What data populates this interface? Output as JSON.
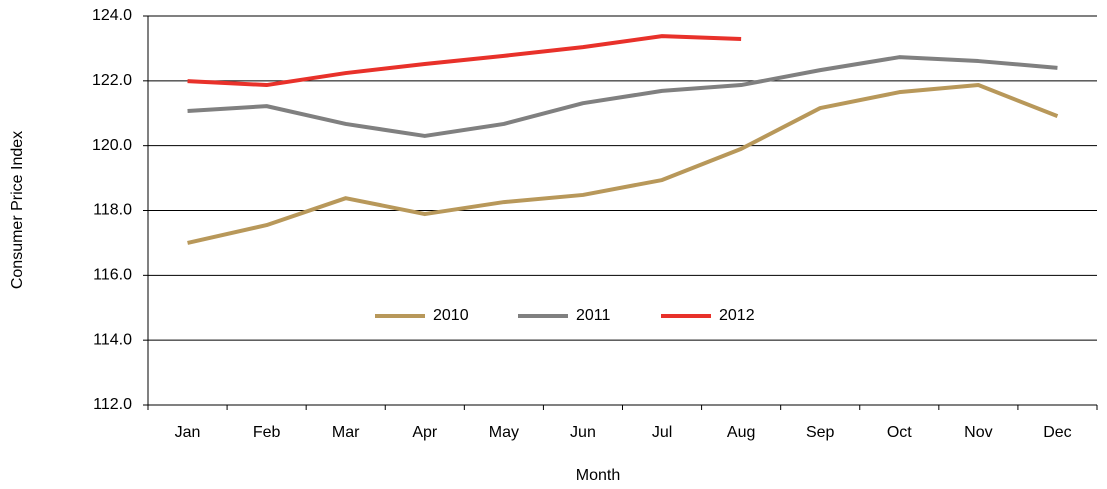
{
  "chart_data": {
    "type": "line",
    "x_label": "Month",
    "y_label": "Consumer Price Index",
    "categories": [
      "Jan",
      "Feb",
      "Mar",
      "Apr",
      "May",
      "Jun",
      "Jul",
      "Aug",
      "Sep",
      "Oct",
      "Nov",
      "Dec"
    ],
    "series": [
      {
        "name": "2010",
        "color": "#b8985a",
        "values": [
          117.0,
          117.55,
          118.38,
          117.89,
          118.26,
          118.48,
          118.94,
          119.9,
          121.16,
          121.65,
          121.87,
          120.91
        ]
      },
      {
        "name": "2011",
        "color": "#808080",
        "values": [
          121.07,
          121.22,
          120.67,
          120.3,
          120.67,
          121.31,
          121.69,
          121.87,
          122.33,
          122.73,
          122.61,
          122.4
        ]
      },
      {
        "name": "2012",
        "color": "#e8312a",
        "values": [
          121.99,
          121.87,
          122.24,
          122.52,
          122.77,
          123.04,
          123.38,
          123.29,
          null,
          null,
          null,
          null
        ]
      }
    ],
    "ylim": [
      112,
      124
    ],
    "yticks": [
      {
        "value": 112,
        "label": "112.0"
      },
      {
        "value": 114,
        "label": "114.0"
      },
      {
        "value": 116,
        "label": "116.0"
      },
      {
        "value": 118,
        "label": "118.0"
      },
      {
        "value": 120,
        "label": "120.0"
      },
      {
        "value": 122,
        "label": "122.0"
      },
      {
        "value": 124,
        "label": "124.0"
      }
    ],
    "grid": true,
    "legend": "center"
  }
}
